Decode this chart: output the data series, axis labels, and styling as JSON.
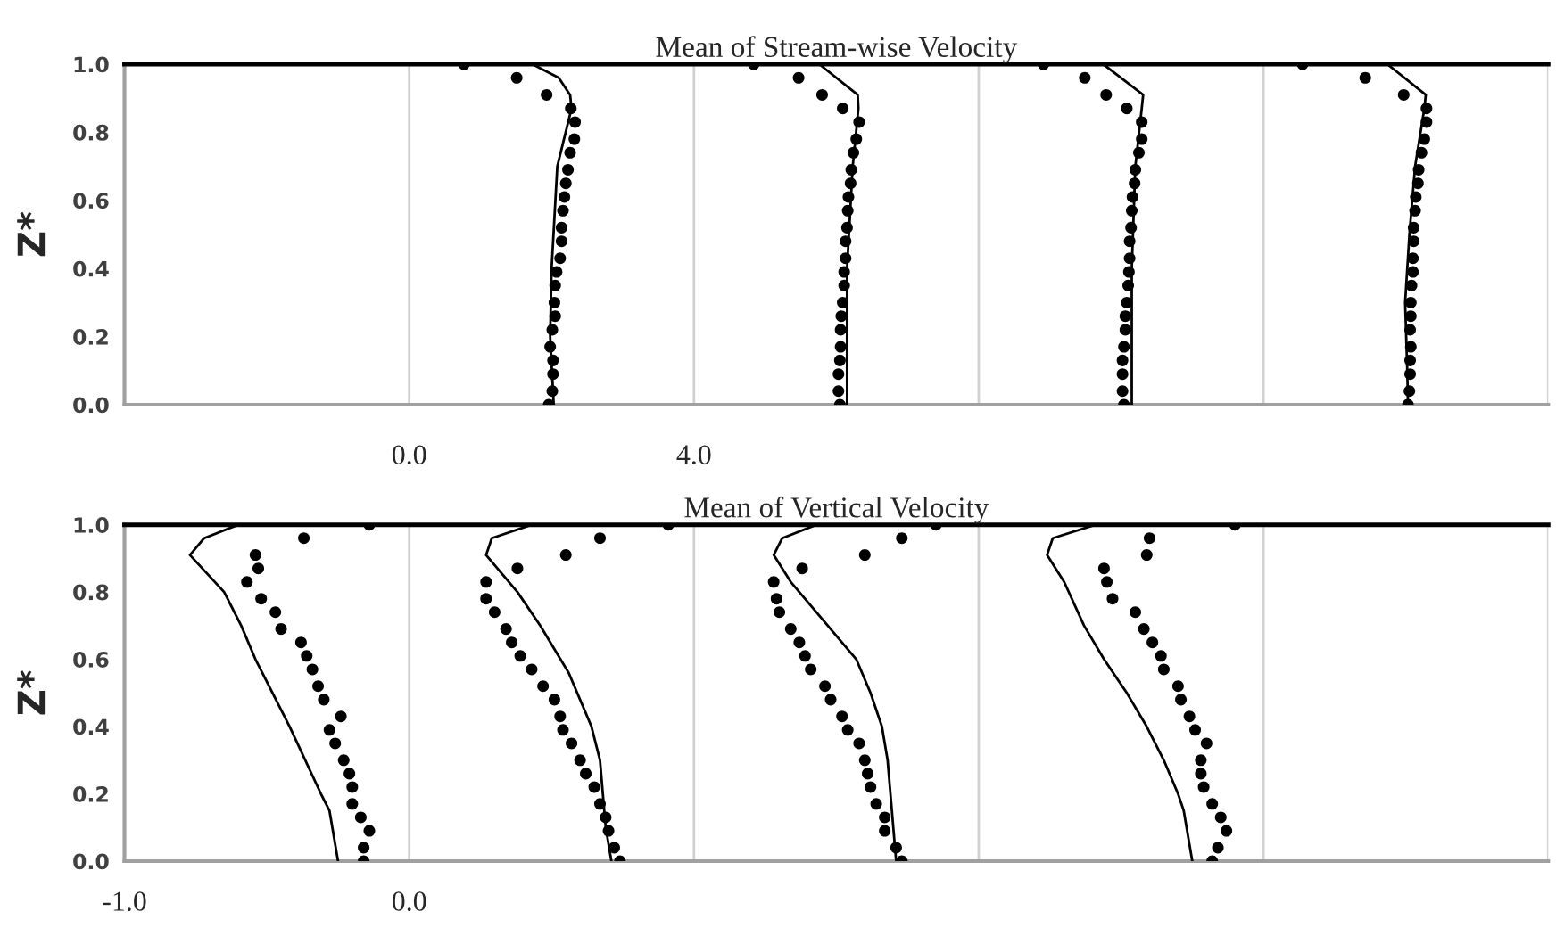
{
  "chart_data": [
    {
      "type": "scatter",
      "title": "Mean of Stream-wise Velocity",
      "ylabel": "Z*",
      "xlim": [
        -4,
        16
      ],
      "ylim": [
        0,
        1.0
      ],
      "xticks": [
        {
          "value": -4,
          "label": null
        },
        {
          "value": 0,
          "label": "0.0"
        },
        {
          "value": 4,
          "label": "4.0"
        },
        {
          "value": 8,
          "label": null
        },
        {
          "value": 12,
          "label": null
        },
        {
          "value": 16,
          "label": null
        }
      ],
      "yticks": [
        {
          "value": 0,
          "label": "0.0"
        },
        {
          "value": 0.2,
          "label": "0.2"
        },
        {
          "value": 0.4,
          "label": "0.4"
        },
        {
          "value": 0.6,
          "label": "0.6"
        },
        {
          "value": 0.8,
          "label": "0.8"
        },
        {
          "value": 1.0,
          "label": "1.0"
        }
      ],
      "grid": "x",
      "series": [
        {
          "type": "line",
          "color": "#000000",
          "x": [
            1.73,
            2.1,
            2.26,
            2.28,
            2.08,
            2.0,
            1.98,
            2.03
          ],
          "values": [
            1.0,
            0.96,
            0.91,
            0.87,
            0.7,
            0.4,
            0.2,
            0.0
          ]
        },
        {
          "color": "#000000",
          "marker": "circle",
          "x": [
            0.77,
            1.51,
            1.93,
            2.27,
            2.33,
            2.32,
            2.26,
            2.23,
            2.2,
            2.18,
            2.16,
            2.14,
            2.14,
            2.12,
            2.07,
            2.05,
            2.04,
            2.05,
            2.01,
            1.98,
            2.02,
            2.02,
            2.01,
            1.96
          ],
          "values": [
            1.0,
            0.96,
            0.91,
            0.87,
            0.83,
            0.78,
            0.74,
            0.69,
            0.65,
            0.61,
            0.57,
            0.52,
            0.48,
            0.43,
            0.39,
            0.35,
            0.3,
            0.26,
            0.22,
            0.17,
            0.13,
            0.09,
            0.04,
            0.0
          ]
        },
        {
          "type": "line",
          "color": "#000000",
          "x": [
            5.76,
            6.3,
            6.31,
            6.23,
            6.15,
            6.15
          ],
          "values": [
            1.0,
            0.91,
            0.87,
            0.7,
            0.4,
            0.0
          ]
        },
        {
          "color": "#000000",
          "marker": "circle",
          "x": [
            4.84,
            5.47,
            5.8,
            6.09,
            6.32,
            6.28,
            6.24,
            6.21,
            6.2,
            6.17,
            6.16,
            6.15,
            6.13,
            6.13,
            6.11,
            6.11,
            6.09,
            6.07,
            6.06,
            6.06,
            6.05,
            6.03,
            6.03,
            6.05
          ],
          "values": [
            1.0,
            0.96,
            0.91,
            0.87,
            0.83,
            0.78,
            0.74,
            0.69,
            0.65,
            0.61,
            0.57,
            0.52,
            0.48,
            0.43,
            0.39,
            0.35,
            0.3,
            0.26,
            0.22,
            0.17,
            0.13,
            0.09,
            0.04,
            0.0
          ]
        },
        {
          "type": "line",
          "color": "#000000",
          "x": [
            9.75,
            10.31,
            10.29,
            10.2,
            10.15,
            10.15
          ],
          "values": [
            1.0,
            0.91,
            0.87,
            0.7,
            0.4,
            0.0
          ]
        },
        {
          "color": "#000000",
          "marker": "circle",
          "x": [
            8.91,
            9.49,
            9.79,
            10.08,
            10.29,
            10.29,
            10.25,
            10.2,
            10.19,
            10.16,
            10.15,
            10.14,
            10.12,
            10.12,
            10.11,
            10.1,
            10.08,
            10.06,
            10.06,
            10.04,
            10.02,
            10.02,
            10.02,
            10.04
          ],
          "values": [
            1.0,
            0.96,
            0.91,
            0.87,
            0.83,
            0.78,
            0.74,
            0.69,
            0.65,
            0.61,
            0.57,
            0.52,
            0.48,
            0.43,
            0.39,
            0.35,
            0.3,
            0.26,
            0.22,
            0.17,
            0.13,
            0.09,
            0.04,
            0.0
          ]
        },
        {
          "type": "line",
          "color": "#000000",
          "x": [
            13.74,
            14.28,
            14.26,
            14.13,
            14.05,
            13.99,
            14.02,
            14.03
          ],
          "values": [
            1.0,
            0.91,
            0.87,
            0.7,
            0.5,
            0.3,
            0.1,
            0.0
          ]
        },
        {
          "color": "#000000",
          "marker": "circle",
          "x": [
            12.55,
            13.43,
            13.97,
            14.29,
            14.29,
            14.26,
            14.22,
            14.18,
            14.17,
            14.14,
            14.13,
            14.11,
            14.11,
            14.1,
            14.1,
            14.08,
            14.07,
            14.07,
            14.06,
            14.07,
            14.06,
            14.06,
            14.05,
            14.03
          ],
          "values": [
            1.0,
            0.96,
            0.91,
            0.87,
            0.83,
            0.78,
            0.74,
            0.69,
            0.65,
            0.61,
            0.57,
            0.52,
            0.48,
            0.43,
            0.39,
            0.35,
            0.3,
            0.26,
            0.22,
            0.17,
            0.13,
            0.09,
            0.04,
            0.0
          ]
        }
      ]
    },
    {
      "type": "scatter",
      "title": "Mean of Vertical Velocity",
      "ylabel": "Z*",
      "xlim": [
        -1,
        4
      ],
      "ylim": [
        0,
        1.0
      ],
      "xticks": [
        {
          "value": -1,
          "label": "-1.0"
        },
        {
          "value": 0,
          "label": "0.0"
        },
        {
          "value": 1,
          "label": null
        },
        {
          "value": 2,
          "label": null
        },
        {
          "value": 3,
          "label": null
        },
        {
          "value": 4,
          "label": null
        }
      ],
      "yticks": [
        {
          "value": 0,
          "label": "0.0"
        },
        {
          "value": 0.2,
          "label": "0.2"
        },
        {
          "value": 0.4,
          "label": "0.4"
        },
        {
          "value": 0.6,
          "label": "0.6"
        },
        {
          "value": 0.8,
          "label": "0.8"
        },
        {
          "value": 1.0,
          "label": "1.0"
        }
      ],
      "grid": "x",
      "series": [
        {
          "type": "line",
          "color": "#000000",
          "x": [
            -0.6,
            -0.72,
            -0.77,
            -0.65,
            -0.59,
            -0.54,
            -0.42,
            -0.31,
            -0.28,
            -0.25
          ],
          "values": [
            1.0,
            0.96,
            0.91,
            0.8,
            0.7,
            0.6,
            0.4,
            0.2,
            0.15,
            0.0
          ]
        },
        {
          "color": "#000000",
          "marker": "circle",
          "x": [
            -0.14,
            -0.37,
            -0.54,
            -0.53,
            -0.57,
            -0.52,
            -0.47,
            -0.45,
            -0.38,
            -0.36,
            -0.34,
            -0.32,
            -0.3,
            -0.24,
            -0.28,
            -0.26,
            -0.23,
            -0.21,
            -0.2,
            -0.2,
            -0.17,
            -0.14,
            -0.16,
            -0.16
          ],
          "values": [
            1.0,
            0.96,
            0.91,
            0.87,
            0.83,
            0.78,
            0.74,
            0.69,
            0.65,
            0.61,
            0.57,
            0.52,
            0.48,
            0.43,
            0.39,
            0.35,
            0.3,
            0.26,
            0.22,
            0.17,
            0.13,
            0.09,
            0.04,
            0.0
          ]
        },
        {
          "type": "line",
          "color": "#000000",
          "x": [
            0.43,
            0.29,
            0.27,
            0.38,
            0.46,
            0.56,
            0.64,
            0.67,
            0.69,
            0.71
          ],
          "values": [
            1.0,
            0.96,
            0.91,
            0.8,
            0.7,
            0.56,
            0.4,
            0.3,
            0.1,
            0.0
          ]
        },
        {
          "color": "#000000",
          "marker": "circle",
          "x": [
            0.91,
            0.67,
            0.55,
            0.38,
            0.27,
            0.27,
            0.3,
            0.34,
            0.36,
            0.39,
            0.43,
            0.47,
            0.51,
            0.53,
            0.54,
            0.57,
            0.6,
            0.62,
            0.65,
            0.67,
            0.69,
            0.7,
            0.72,
            0.74
          ],
          "values": [
            1.0,
            0.96,
            0.91,
            0.87,
            0.83,
            0.78,
            0.74,
            0.69,
            0.65,
            0.61,
            0.57,
            0.52,
            0.48,
            0.43,
            0.39,
            0.35,
            0.3,
            0.26,
            0.22,
            0.17,
            0.13,
            0.09,
            0.04,
            0.0
          ]
        },
        {
          "type": "line",
          "color": "#000000",
          "x": [
            1.43,
            1.31,
            1.28,
            1.34,
            1.47,
            1.57,
            1.62,
            1.66,
            1.68,
            1.71
          ],
          "values": [
            1.0,
            0.96,
            0.91,
            0.83,
            0.7,
            0.6,
            0.5,
            0.4,
            0.3,
            0.0
          ]
        },
        {
          "color": "#000000",
          "marker": "circle",
          "x": [
            1.85,
            1.73,
            1.6,
            1.38,
            1.28,
            1.29,
            1.3,
            1.34,
            1.37,
            1.39,
            1.41,
            1.46,
            1.48,
            1.52,
            1.54,
            1.58,
            1.6,
            1.61,
            1.62,
            1.64,
            1.67,
            1.67,
            1.71,
            1.73
          ],
          "values": [
            1.0,
            0.96,
            0.91,
            0.87,
            0.83,
            0.78,
            0.74,
            0.69,
            0.65,
            0.61,
            0.57,
            0.52,
            0.48,
            0.43,
            0.39,
            0.35,
            0.3,
            0.26,
            0.22,
            0.17,
            0.13,
            0.09,
            0.04,
            0.0
          ]
        },
        {
          "type": "line",
          "color": "#000000",
          "x": [
            2.41,
            2.26,
            2.24,
            2.3,
            2.37,
            2.44,
            2.52,
            2.59,
            2.65,
            2.7,
            2.72,
            2.75
          ],
          "values": [
            1.0,
            0.96,
            0.91,
            0.83,
            0.7,
            0.6,
            0.5,
            0.4,
            0.3,
            0.2,
            0.15,
            0.0
          ]
        },
        {
          "color": "#000000",
          "marker": "circle",
          "x": [
            2.9,
            2.6,
            2.59,
            2.44,
            2.45,
            2.47,
            2.55,
            2.58,
            2.61,
            2.64,
            2.65,
            2.7,
            2.71,
            2.74,
            2.76,
            2.8,
            2.78,
            2.78,
            2.79,
            2.82,
            2.85,
            2.87,
            2.84,
            2.82
          ],
          "values": [
            1.0,
            0.96,
            0.91,
            0.87,
            0.83,
            0.78,
            0.74,
            0.69,
            0.65,
            0.61,
            0.57,
            0.52,
            0.48,
            0.43,
            0.39,
            0.35,
            0.3,
            0.26,
            0.22,
            0.17,
            0.13,
            0.09,
            0.04,
            0.0
          ]
        }
      ]
    }
  ]
}
